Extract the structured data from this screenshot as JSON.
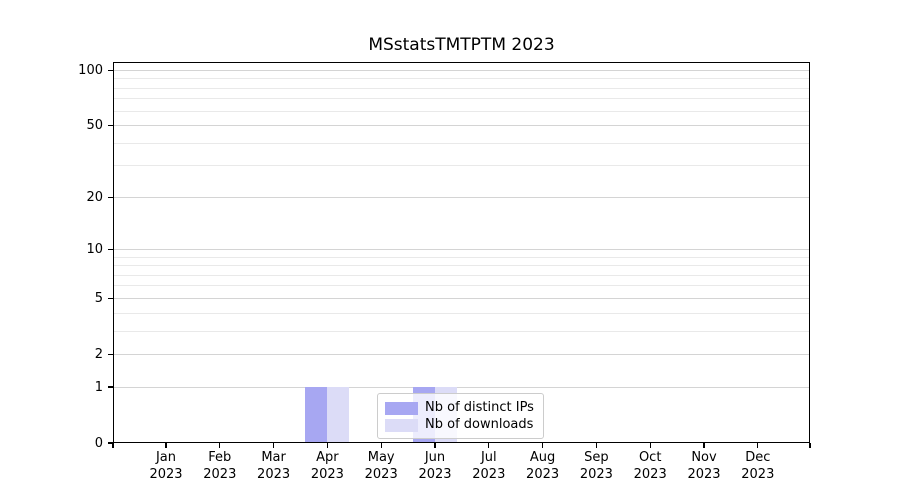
{
  "chart_data": {
    "type": "bar",
    "title": "MSstatsTMTPTM 2023",
    "categories": [
      "Jan 2023",
      "Feb 2023",
      "Mar 2023",
      "Apr 2023",
      "May 2023",
      "Jun 2023",
      "Jul 2023",
      "Aug 2023",
      "Sep 2023",
      "Oct 2023",
      "Nov 2023",
      "Dec 2023"
    ],
    "series": [
      {
        "name": "Nb of distinct IPs",
        "color": "#a7a7f2",
        "values": [
          0,
          0,
          0,
          1,
          0,
          1,
          0,
          0,
          0,
          0,
          0,
          0
        ]
      },
      {
        "name": "Nb of downloads",
        "color": "#dcdcf7",
        "values": [
          0,
          0,
          0,
          1,
          0,
          1,
          0,
          0,
          0,
          0,
          0,
          0
        ]
      }
    ],
    "yscale": "log1p",
    "ylim": [
      0,
      111
    ],
    "y_major_ticks": [
      0,
      1,
      2,
      5,
      10,
      20,
      50,
      100
    ],
    "y_minor_gridlines": [
      3,
      4,
      6,
      7,
      8,
      9,
      30,
      40,
      60,
      70,
      80,
      90
    ],
    "grid": "horizontal",
    "legend": {
      "position": "lower center"
    },
    "colors": {
      "spine": "#000000",
      "grid_major": "#d4d4d4",
      "grid_minor": "#e9e9e9",
      "legend_border": "#cccccc",
      "legend_bg": "rgba(255,255,255,0.8)"
    }
  }
}
